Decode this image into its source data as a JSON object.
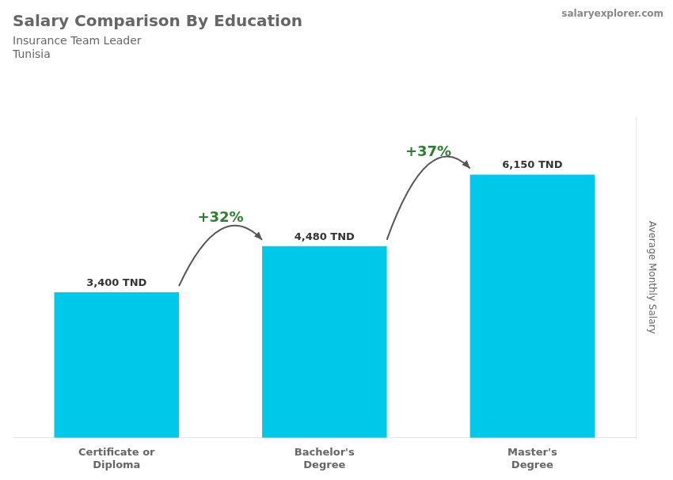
{
  "chart_data": {
    "type": "bar",
    "title": "Salary Comparison By Education",
    "subtitle": [
      "Insurance Team Leader",
      "Tunisia"
    ],
    "watermark": "salaryexplorer.com",
    "ylabel": "Average Monthly Salary",
    "categories": [
      "Certificate or\nDiploma",
      "Bachelor's\nDegree",
      "Master's\nDegree"
    ],
    "values": [
      3400,
      4480,
      6150
    ],
    "value_labels": [
      "3,400 TND",
      "4,480 TND",
      "6,150 TND"
    ],
    "data_labels": true,
    "color": "#00c8e8",
    "annotations": [
      "+32%",
      "+37%"
    ],
    "ylim": [
      0,
      7500
    ],
    "grid": false,
    "tick_labels": "x"
  }
}
